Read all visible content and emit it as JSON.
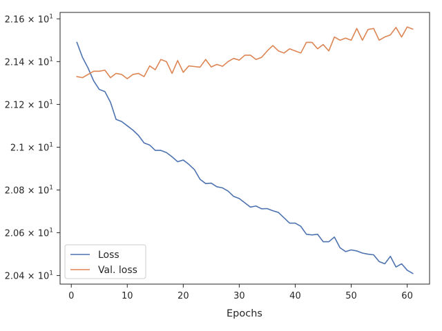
{
  "chart_data": {
    "type": "line",
    "title": "",
    "xlabel": "Epochs",
    "ylabel": "",
    "xlim": [
      -2.0,
      64.0
    ],
    "ylim": [
      20.36,
      21.63
    ],
    "x_ticks": [
      0,
      10,
      20,
      30,
      40,
      50,
      60
    ],
    "x_tick_labels": [
      "0",
      "10",
      "20",
      "30",
      "40",
      "50",
      "60"
    ],
    "y_ticks": [
      20.4,
      20.6,
      20.8,
      21.0,
      21.2,
      21.4,
      21.6
    ],
    "y_tick_labels": [
      {
        "mantissa": "2.04",
        "exp": "1"
      },
      {
        "mantissa": "2.06",
        "exp": "1"
      },
      {
        "mantissa": "2.08",
        "exp": "1"
      },
      {
        "mantissa": "2.1",
        "exp": "1"
      },
      {
        "mantissa": "2.12",
        "exp": "1"
      },
      {
        "mantissa": "2.14",
        "exp": "1"
      },
      {
        "mantissa": "2.16",
        "exp": "1"
      }
    ],
    "grid": false,
    "legend": "lower-left",
    "x": [
      1,
      2,
      3,
      4,
      5,
      6,
      7,
      8,
      9,
      10,
      11,
      12,
      13,
      14,
      15,
      16,
      17,
      18,
      19,
      20,
      21,
      22,
      23,
      24,
      25,
      26,
      27,
      28,
      29,
      30,
      31,
      32,
      33,
      34,
      35,
      36,
      37,
      38,
      39,
      40,
      41,
      42,
      43,
      44,
      45,
      46,
      47,
      48,
      49,
      50,
      51,
      52,
      53,
      54,
      55,
      56,
      57,
      58,
      59,
      60,
      61
    ],
    "series": [
      {
        "name": "Loss",
        "color": "#4c72b0",
        "values": [
          21.49,
          21.42,
          21.37,
          21.31,
          21.27,
          21.26,
          21.21,
          21.13,
          21.12,
          21.1,
          21.08,
          21.055,
          21.02,
          21.01,
          20.985,
          20.985,
          20.975,
          20.955,
          20.932,
          20.94,
          20.92,
          20.895,
          20.85,
          20.83,
          20.832,
          20.815,
          20.81,
          20.795,
          20.77,
          20.76,
          20.74,
          20.72,
          20.725,
          20.712,
          20.713,
          20.703,
          20.695,
          20.67,
          20.645,
          20.645,
          20.63,
          20.593,
          20.59,
          20.593,
          20.558,
          20.558,
          20.58,
          20.53,
          20.512,
          20.52,
          20.515,
          20.505,
          20.5,
          20.497,
          20.465,
          20.455,
          20.49,
          20.44,
          20.455,
          20.425,
          20.41
        ]
      },
      {
        "name": "Val. loss",
        "color": "#dd8452",
        "values": [
          21.33,
          21.325,
          21.34,
          21.355,
          21.355,
          21.36,
          21.325,
          21.345,
          21.34,
          21.32,
          21.34,
          21.345,
          21.33,
          21.38,
          21.362,
          21.41,
          21.4,
          21.345,
          21.405,
          21.35,
          21.38,
          21.377,
          21.374,
          21.41,
          21.375,
          21.387,
          21.378,
          21.4,
          21.415,
          21.407,
          21.43,
          21.43,
          21.41,
          21.42,
          21.45,
          21.475,
          21.45,
          21.44,
          21.46,
          21.45,
          21.44,
          21.49,
          21.49,
          21.46,
          21.48,
          21.45,
          21.515,
          21.5,
          21.51,
          21.5,
          21.555,
          21.5,
          21.55,
          21.555,
          21.5,
          21.515,
          21.525,
          21.56,
          21.515,
          21.562,
          21.552
        ]
      }
    ]
  }
}
